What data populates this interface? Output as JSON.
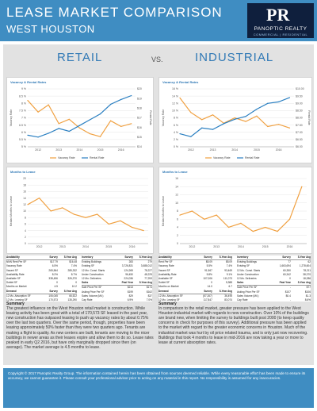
{
  "header": {
    "title": "LEASE MARKET COMPARISON",
    "subtitle": "WEST HOUSTON",
    "logo_mark": "PR",
    "logo_name": "PANOPTIC REALTY",
    "logo_sub": "COMMERCIAL | RESIDENTIAL"
  },
  "columns": {
    "left": "RETAIL",
    "vs": "VS.",
    "right": "INDUSTRIAL"
  },
  "chart_data": [
    {
      "type": "line",
      "panel": "retail-vacancy",
      "title": "Vacancy & Rental Rates",
      "x": [
        2011.5,
        2012,
        2012.5,
        2013,
        2013.5,
        2014,
        2014.5,
        2015,
        2015.5,
        2016,
        2016.5
      ],
      "series": [
        {
          "name": "Vacancy Rate",
          "values": [
            8.2,
            7.4,
            7.9,
            6.6,
            6.9,
            6.3,
            5.9,
            5.7,
            6.8,
            6.4,
            6.6
          ]
        },
        {
          "name": "Rental Rate",
          "values": [
            15.2,
            15.0,
            15.4,
            15.9,
            15.6,
            16.2,
            16.8,
            17.4,
            18.4,
            18.9,
            19.3
          ]
        }
      ],
      "yleft": [
        5,
        9
      ],
      "yright": [
        14,
        20
      ],
      "yleft_ticks": [
        "9 %",
        "8.5 %",
        "8 %",
        "7.5 %",
        "7 %",
        "6.5 %",
        "6 %",
        "5.5 %",
        "5 %"
      ],
      "yright_ticks": [
        "$20",
        "$19",
        "$18",
        "$17",
        "$16",
        "$15",
        "$14"
      ],
      "ylabel": "Vacancy Rate",
      "y2label": "Rental Rate",
      "xticks": [
        "2012",
        "2013",
        "2014",
        "2015",
        "2016"
      ]
    },
    {
      "type": "line",
      "panel": "industrial-vacancy",
      "title": "Vacancy & Rental Rates",
      "x": [
        2011.5,
        2012,
        2012.5,
        2013,
        2013.5,
        2014,
        2014.5,
        2015,
        2015.5,
        2016,
        2016.5
      ],
      "series": [
        {
          "name": "Vacancy Rate",
          "values": [
            13.5,
            9.5,
            7.5,
            8.8,
            6.5,
            8.0,
            7.0,
            8.5,
            5.6,
            6.2,
            5.2
          ]
        },
        {
          "name": "Rental Rate",
          "values": [
            6.9,
            6.7,
            7.3,
            7.2,
            7.6,
            7.9,
            8.1,
            8.6,
            9.0,
            9.1,
            9.4
          ]
        }
      ],
      "yleft": [
        0,
        16
      ],
      "yright": [
        6,
        10
      ],
      "yleft_ticks": [
        "16 %",
        "14 %",
        "12 %",
        "10 %",
        "8 %",
        "6 %",
        "4 %",
        "2 %",
        "0 %"
      ],
      "yright_ticks": [
        "$10.00",
        "$9.50",
        "$9.00",
        "$8.50",
        "$8.00",
        "$7.50",
        "$7.00",
        "$6.50",
        "$6.00"
      ],
      "ylabel": "Vacancy Rate",
      "y2label": "Rental Rate",
      "xticks": [
        "2012",
        "2013",
        "2014",
        "2015",
        "2016"
      ]
    },
    {
      "type": "line",
      "panel": "retail-months",
      "title": "Months to Lease",
      "x": [
        2011.5,
        2012,
        2012.5,
        2013,
        2013.5,
        2014,
        2014.5,
        2015,
        2015.5,
        2016,
        2016.5
      ],
      "series": [
        {
          "name": "Months to Lease",
          "values": [
            12,
            14,
            10,
            11,
            9,
            8,
            9,
            6,
            7,
            5,
            4
          ]
        }
      ],
      "ylim": [
        0,
        20
      ],
      "yticks": [
        "20",
        "18",
        "16",
        "14",
        "12",
        "10",
        "8",
        "6",
        "4",
        "2",
        "0"
      ],
      "ylabel": "Median Months to Lease",
      "xticks": [
        "2012",
        "2013",
        "2014",
        "2015",
        "2016"
      ]
    },
    {
      "type": "line",
      "panel": "industrial-months",
      "title": "Months to Lease",
      "x": [
        2011.5,
        2012,
        2012.5,
        2013,
        2013.5,
        2014,
        2014.5,
        2015,
        2015.5,
        2016,
        2016.5
      ],
      "series": [
        {
          "name": "Months to Lease",
          "values": [
            7,
            8,
            6,
            7,
            4,
            5,
            3,
            4,
            3,
            6,
            14
          ]
        }
      ],
      "ylim": [
        0,
        16
      ],
      "yticks": [
        "16",
        "14",
        "12",
        "10",
        "8",
        "6",
        "4",
        "2",
        "0"
      ],
      "ylabel": "Median Months to Lease",
      "xticks": [
        "2012",
        "2013",
        "2014",
        "2015",
        "2016"
      ]
    }
  ],
  "stats_left": {
    "header": [
      "Availability",
      "Survey",
      "5-Year Avg"
    ],
    "rows": [
      [
        "NNN Rent Per SF",
        "$17.79",
        "$16.48"
      ],
      [
        "Vacancy Rate",
        "6.5%",
        "7.4%"
      ],
      [
        "Vacant SF",
        "265,564",
        "285,332"
      ],
      [
        "Availability Rate",
        "8.2%",
        "8.7%"
      ],
      [
        "Available SF",
        "338,456",
        "326,370"
      ],
      [
        "Sublet SF",
        "0",
        "0"
      ],
      [
        "Months on Market",
        "4.5",
        "10.2"
      ]
    ],
    "header2": [
      "Demand",
      "Survey",
      "5-Year Avg"
    ],
    "rows2": [
      [
        "12 Mo. Absorption SF",
        "106,045",
        "66,522"
      ],
      [
        "12 Mo. Leasing SF",
        "170,573",
        "135,290"
      ]
    ],
    "inv_header": [
      "Inventory",
      "Survey",
      "5-Year Avg"
    ],
    "inv_rows": [
      [
        "Existing Buildings",
        "283",
        "279"
      ],
      [
        "Existing SF",
        "3,726,831",
        "3,688,012"
      ],
      [
        "12 Mo. Const. Starts",
        "124,265",
        "78,227"
      ],
      [
        "Under Construction",
        "96,450",
        "48,225"
      ],
      [
        "12 Mo. Deliveries",
        "224,036",
        "77,253"
      ]
    ],
    "sales_header": [
      "Sales",
      "Past Year",
      "5-Year Avg"
    ],
    "sales_rows": [
      [
        "Sale Price Per SF",
        "$213",
        "$174"
      ],
      [
        "Asking Price Per SF",
        "$199",
        "$162"
      ],
      [
        "Sales Volume (Mil.)",
        "$29",
        "$37"
      ],
      [
        "Cap Rate",
        "6.9%",
        "7.0%"
      ]
    ]
  },
  "stats_right": {
    "header": [
      "Availability",
      "Survey",
      "5-Year Avg"
    ],
    "rows": [
      [
        "Rent Per SF",
        "$8.09",
        "$8.09"
      ],
      [
        "Vacancy Rate",
        "5.5%",
        "7.4%"
      ],
      [
        "Vacant SF",
        "91,567",
        "93,469"
      ],
      [
        "Availability Rate",
        "5.8%",
        "9.1%"
      ],
      [
        "Available SF",
        "107,006",
        "111,073"
      ],
      [
        "Sublet SF",
        "0",
        "5,388"
      ],
      [
        "Months on Market",
        "14.0",
        "6.7"
      ]
    ],
    "header2": [
      "Demand",
      "Survey",
      "5-Year Avg"
    ],
    "rows2": [
      [
        "12 Mo. Absorption SF",
        "(57,267)",
        "36,495"
      ],
      [
        "12 Mo. Leasing SF",
        "117,847",
        "83,074"
      ]
    ],
    "inv_header": [
      "Inventory",
      "Survey",
      "5-Year Avg"
    ],
    "inv_rows": [
      [
        "Existing Buildings",
        "77",
        "62"
      ],
      [
        "Existing SF",
        "1,663,694",
        "1,278,604"
      ],
      [
        "12 Mo. Const. Starts",
        "60,350",
        "78,211"
      ],
      [
        "Under Construction",
        "60,342",
        "38,370"
      ],
      [
        "12 Mo. Deliveries",
        "0",
        "18,286"
      ]
    ],
    "sales_header": [
      "Sales",
      "Past Year",
      "5-Year Avg"
    ],
    "sales_rows": [
      [
        "Sale Price Per SF",
        "-",
        "$77"
      ],
      [
        "Asking Price Per SF",
        "$107",
        "$106"
      ],
      [
        "Sales Volume (Mil.)",
        "$0.4",
        "$1.3"
      ],
      [
        "Cap Rate",
        "-",
        "8.6%"
      ]
    ]
  },
  "summary_left": {
    "title": "Summary",
    "text": "The greatest influence on the West Houston retail market is construction. While leasing activity has been great with a total of 170,573 SF leased in the past year, new construction has outpaced leasing to push up vacancy rates by about 0.75% over the last two quarters. Over the same period, though, properties have been leasing approximately 50% faster than they were two quarters ago. Tenants are making a flight to quality. As new centers are built, tenants are moving to the nicer buildings in newer areas as their leases expire and allow them to do so. Lease rates peaked in early Q2 2016, but have only marginally dropped since then (on average). The market average is 4.5 months to lease."
  },
  "summary_right": {
    "title": "Summary",
    "text": "In comparison to the retail market, greater pressure has been applied to the West Houston industrial market with regards to new construction. Over 10% of the buildings are brand new, when limiting the survey to buildings built post 2000 (to keep quality concerns in check for purposes of this survey). Additional pressure has been applied to the market with regard to the greater economic concerns in Houston. Much of the industrial market was hurt by oil price related trauma, and is only just now recovering. Buildings that took 4 months to lease in mid-2016 are now taking a year or more to lease at current absorption rates."
  },
  "footer": {
    "text": "Copyright © 2017 Panoptic Realty Group. The information contained herein has been obtained from sources deemed reliable. While every reasonable effort has been made to ensure its accuracy, we cannot guarantee it. Please consult your professional advisor prior to acting on any material in this report. No responsibility is assumed for any inaccuracies."
  },
  "colors": {
    "vacancy": "#f0a040",
    "rental": "#2a7fc1",
    "months": "#f0a040",
    "brand": "#3f8dc2"
  }
}
